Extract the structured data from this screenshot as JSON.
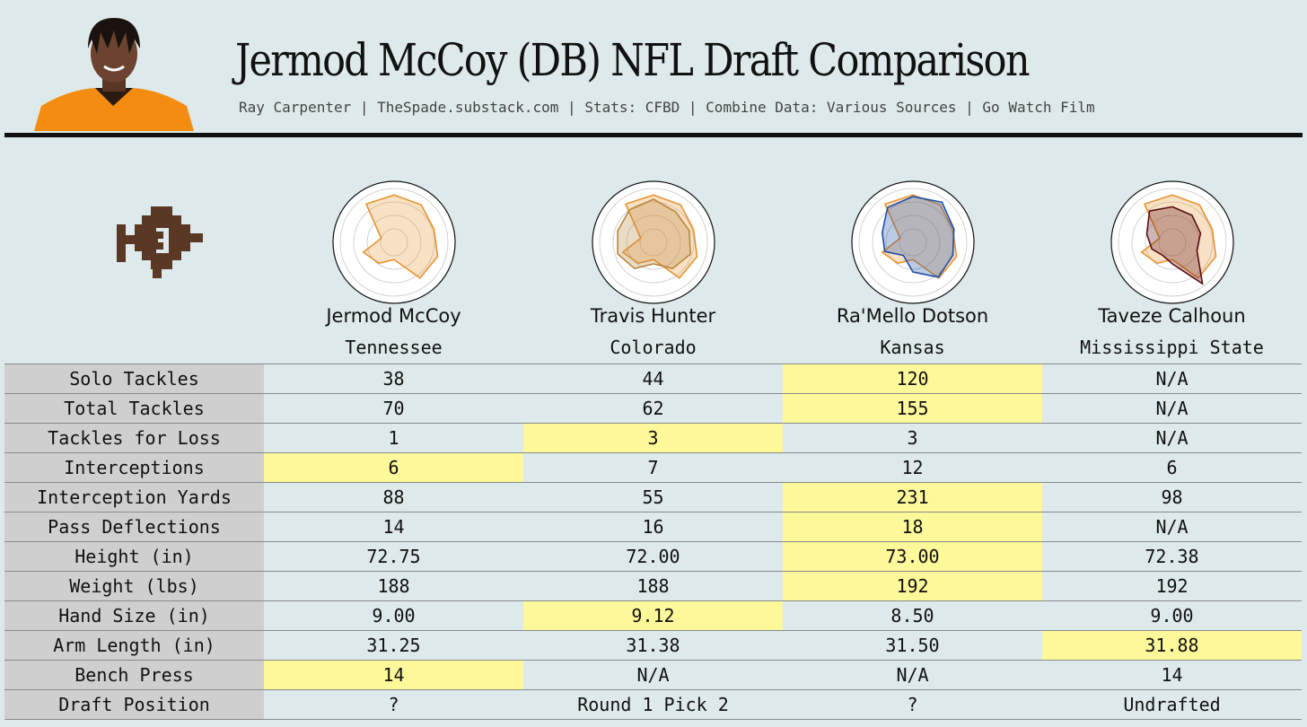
{
  "header": {
    "title": "Jermod McCoy (DB) NFL Draft Comparison",
    "subtitle": "Ray Carpenter | TheSpade.substack.com | Stats: CFBD | Combine Data: Various Sources | Go Watch Film"
  },
  "colors": {
    "background": "#dde9ea",
    "highlight": "#fdf89a",
    "label_bg": "#cfcfcf",
    "logo": "#5a3826",
    "orange": "#e8922f",
    "blue": "#1d4fa8",
    "maroon": "#5a0d16"
  },
  "players": [
    {
      "name": "Jermod McCoy",
      "school": "Tennessee"
    },
    {
      "name": "Travis Hunter",
      "school": "Colorado"
    },
    {
      "name": "Ra'Mello Dotson",
      "school": "Kansas"
    },
    {
      "name": "Taveze Calhoun",
      "school": "Mississippi State"
    }
  ],
  "chart_data": {
    "type": "table",
    "rows": [
      {
        "label": "Solo Tackles",
        "values": [
          "38",
          "44",
          "120",
          "N/A"
        ],
        "highlight": [
          2
        ]
      },
      {
        "label": "Total Tackles",
        "values": [
          "70",
          "62",
          "155",
          "N/A"
        ],
        "highlight": [
          2
        ]
      },
      {
        "label": "Tackles for Loss",
        "values": [
          "1",
          "3",
          "3",
          "N/A"
        ],
        "highlight": [
          1
        ]
      },
      {
        "label": "Interceptions",
        "values": [
          "6",
          "7",
          "12",
          "6"
        ],
        "highlight": [
          0
        ]
      },
      {
        "label": "Interception Yards",
        "values": [
          "88",
          "55",
          "231",
          "98"
        ],
        "highlight": [
          2
        ]
      },
      {
        "label": "Pass Deflections",
        "values": [
          "14",
          "16",
          "18",
          "N/A"
        ],
        "highlight": [
          2
        ]
      },
      {
        "label": "Height (in)",
        "values": [
          "72.75",
          "72.00",
          "73.00",
          "72.38"
        ],
        "highlight": [
          2
        ]
      },
      {
        "label": "Weight (lbs)",
        "values": [
          "188",
          "188",
          "192",
          "192"
        ],
        "highlight": [
          2
        ]
      },
      {
        "label": "Hand Size (in)",
        "values": [
          "9.00",
          "9.12",
          "8.50",
          "9.00"
        ],
        "highlight": [
          1
        ]
      },
      {
        "label": "Arm Length (in)",
        "values": [
          "31.25",
          "31.38",
          "31.50",
          "31.88"
        ],
        "highlight": [
          3
        ]
      },
      {
        "label": "Bench Press",
        "values": [
          "14",
          "N/A",
          "N/A",
          "14"
        ],
        "highlight": [
          0
        ]
      },
      {
        "label": "Draft Position",
        "values": [
          "?",
          "Round 1 Pick 2",
          "?",
          "Undrafted"
        ],
        "highlight": []
      }
    ],
    "radar": {
      "type": "radar",
      "rings": 4,
      "reference_series": {
        "name": "Jermod McCoy",
        "color": "#e8922f",
        "values": [
          0.88,
          0.86,
          0.78,
          0.85,
          0.82,
          0.32,
          0.48,
          0.6,
          0.25,
          0.88
        ]
      },
      "comparisons": [
        {
          "name": "Jermod McCoy",
          "color": "#e8922f",
          "values": [
            0.88,
            0.86,
            0.78,
            0.85,
            0.82,
            0.32,
            0.48,
            0.6,
            0.25,
            0.88
          ]
        },
        {
          "name": "Travis Hunter",
          "color": "#b8873e",
          "values": [
            0.8,
            0.7,
            0.7,
            0.72,
            0.6,
            0.4,
            0.6,
            0.7,
            0.7,
            0.75
          ]
        },
        {
          "name": "Ra'Mello Dotson",
          "color": "#1d4fa8",
          "values": [
            0.85,
            0.92,
            0.8,
            0.78,
            0.8,
            0.55,
            0.3,
            0.55,
            0.6,
            0.8
          ]
        },
        {
          "name": "Taveze Calhoun",
          "color": "#5a0d16",
          "values": [
            0.66,
            0.62,
            0.55,
            0.48,
            0.95,
            0.4,
            0.3,
            0.4,
            0.5,
            0.72
          ]
        }
      ]
    }
  }
}
